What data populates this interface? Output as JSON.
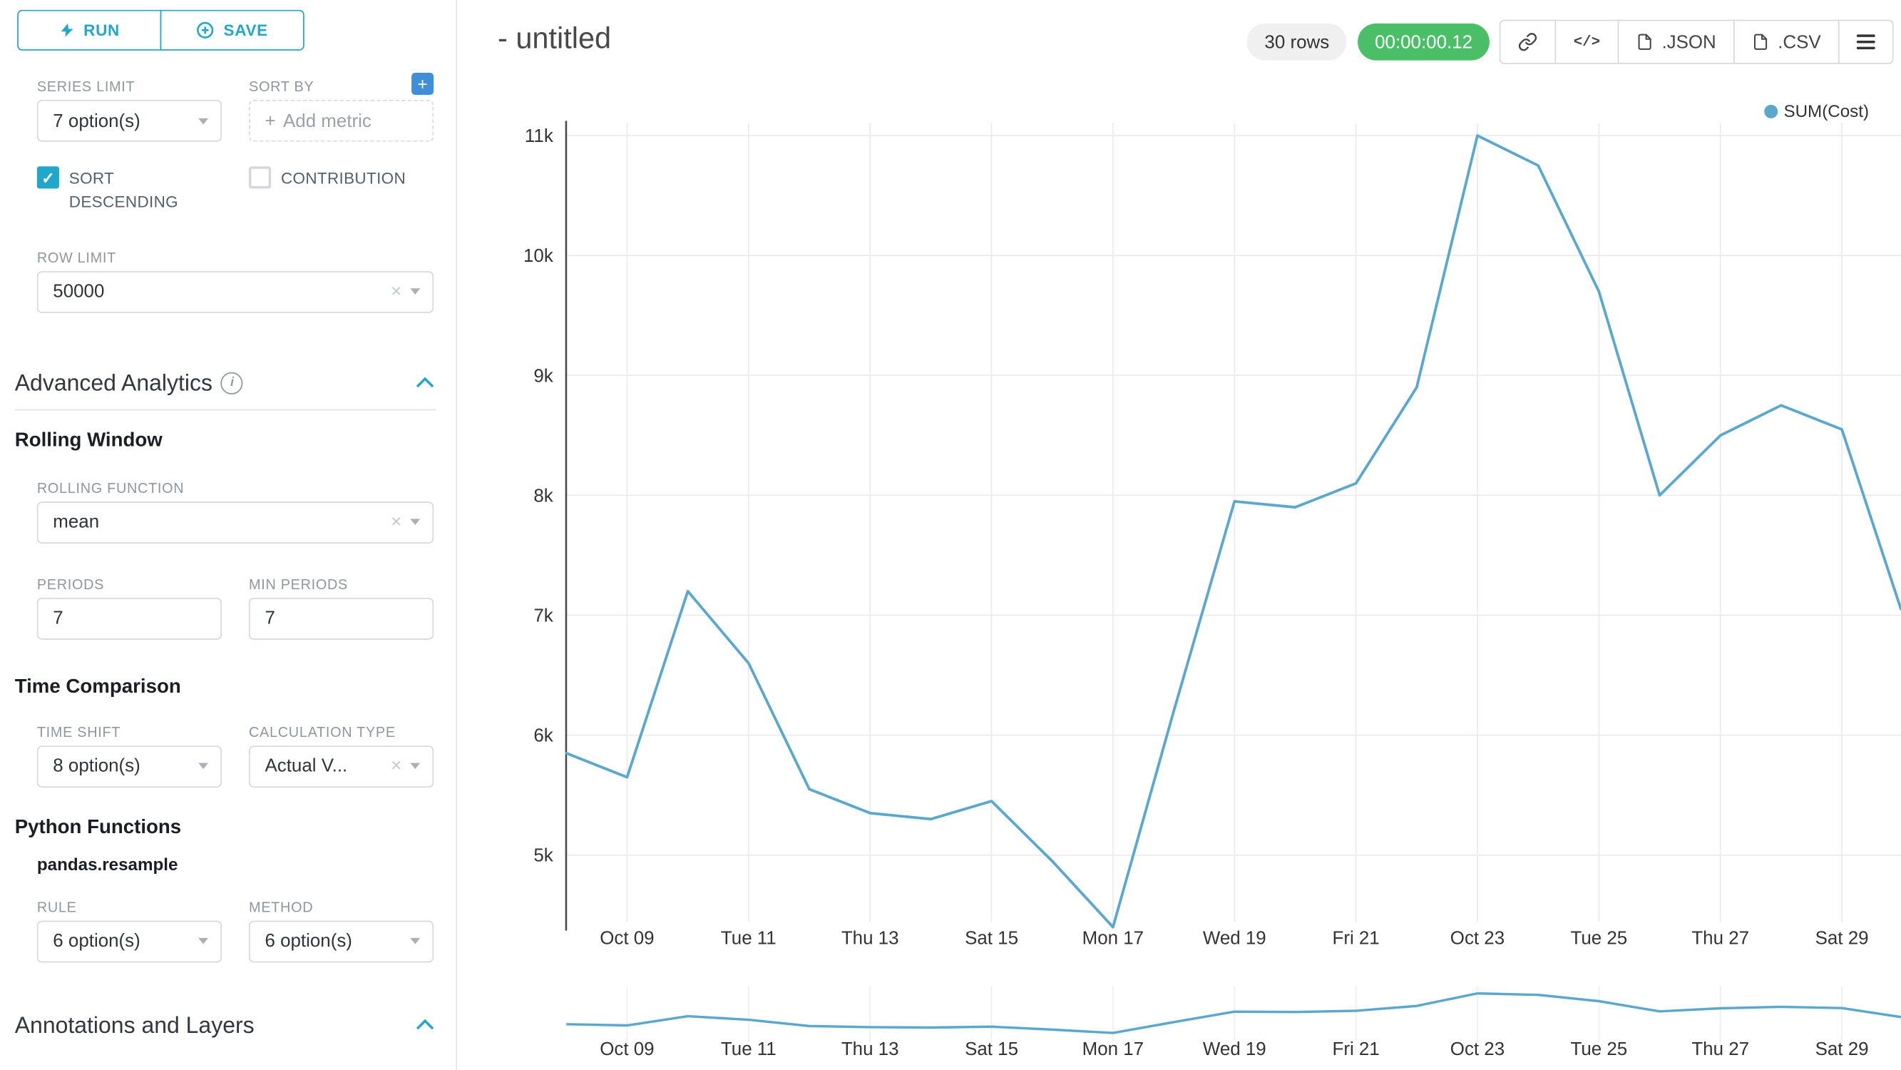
{
  "colors": {
    "accent": "#20a7c9",
    "timer_green": "#4bbf67",
    "line": "#5BA8CF",
    "plus_blue": "#3e8ed8"
  },
  "icons": {
    "plus": "+",
    "check": "✓",
    "clear": "×",
    "info": "i",
    "code": "</>"
  },
  "sidebar": {
    "run_label": "RUN",
    "save_label": "SAVE",
    "series_limit": {
      "label": "SERIES LIMIT",
      "value": "7 option(s)"
    },
    "sort_by": {
      "label": "SORT BY",
      "placeholder": "Add metric"
    },
    "sort_descending_label": "SORT DESCENDING",
    "contribution_label": "CONTRIBUTION",
    "row_limit": {
      "label": "ROW LIMIT",
      "value": "50000"
    },
    "advanced_analytics_title": "Advanced Analytics",
    "rolling_window_title": "Rolling Window",
    "rolling_function": {
      "label": "ROLLING FUNCTION",
      "value": "mean"
    },
    "periods": {
      "label": "PERIODS",
      "value": "7"
    },
    "min_periods": {
      "label": "MIN PERIODS",
      "value": "7"
    },
    "time_comparison_title": "Time Comparison",
    "time_shift": {
      "label": "TIME SHIFT",
      "value": "8 option(s)"
    },
    "calculation_type": {
      "label": "CALCULATION TYPE",
      "value": "Actual V..."
    },
    "python_functions_title": "Python Functions",
    "pandas_resample_label": "pandas.resample",
    "rule": {
      "label": "RULE",
      "value": "6 option(s)"
    },
    "method": {
      "label": "METHOD",
      "value": "6 option(s)"
    },
    "annotations_title": "Annotations and Layers"
  },
  "header": {
    "title": "- untitled",
    "rows_badge": "30 rows",
    "timer_badge": "00:00:00.12",
    "json_label": ".JSON",
    "csv_label": ".CSV"
  },
  "legend": {
    "label": "SUM(Cost)"
  },
  "chart_data": {
    "type": "line",
    "title": "",
    "xlabel": "",
    "ylabel": "",
    "color": "#5BA8CF",
    "grid": true,
    "legend_position": "top-right",
    "x": [
      "Oct 08",
      "Oct 09",
      "Oct 10",
      "Oct 11",
      "Oct 12",
      "Oct 13",
      "Oct 14",
      "Oct 15",
      "Oct 16",
      "Oct 17",
      "Oct 18",
      "Oct 19",
      "Oct 20",
      "Oct 21",
      "Oct 22",
      "Oct 23",
      "Oct 24",
      "Oct 25",
      "Oct 26",
      "Oct 27",
      "Oct 28",
      "Oct 29",
      "Oct 30"
    ],
    "series": [
      {
        "name": "SUM(Cost)",
        "values": [
          5850,
          5650,
          7200,
          6600,
          5550,
          5350,
          5300,
          5450,
          4950,
          4400,
          6200,
          7950,
          7900,
          8100,
          8900,
          11000,
          10750,
          9700,
          8000,
          8500,
          8750,
          8550,
          7050
        ]
      }
    ],
    "x_tick_labels": [
      "Oct 09",
      "Tue 11",
      "Thu 13",
      "Sat 15",
      "Mon 17",
      "Wed 19",
      "Fri 21",
      "Oct 23",
      "Tue 25",
      "Thu 27",
      "Sat 29"
    ],
    "x_tick_indices": [
      1,
      3,
      5,
      7,
      9,
      11,
      13,
      15,
      17,
      19,
      21
    ],
    "y_tick_labels": [
      "11k",
      "10k",
      "9k",
      "8k",
      "7k",
      "6k",
      "5k"
    ],
    "y_tick_values": [
      11000,
      10000,
      9000,
      8000,
      7000,
      6000,
      5000
    ],
    "ylim": [
      4200,
      11000
    ],
    "has_mini_zoom_chart": true
  }
}
